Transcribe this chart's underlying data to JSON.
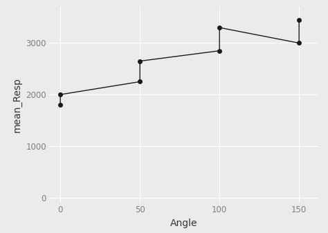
{
  "title": "",
  "xlabel": "Angle",
  "ylabel": "mean_Resp",
  "background_color": "#EBEBEB",
  "panel_color": "#EBEBEB",
  "grid_color": "#FFFFFF",
  "line_color": "#1a1a1a",
  "point_color": "#1a1a1a",
  "tick_color": "#7F7F7F",
  "x_values": [
    0,
    50,
    100,
    150
  ],
  "series1_y": [
    2000,
    2650,
    3300,
    3450
  ],
  "series2_y": [
    1800,
    2250,
    2850,
    3000
  ],
  "xticks": [
    0,
    50,
    100,
    150
  ],
  "yticks": [
    0,
    1000,
    2000,
    3000
  ],
  "xlim": [
    -7,
    162
  ],
  "ylim": [
    -100,
    3700
  ],
  "tick_label_fontsize": 8.5,
  "axis_label_fontsize": 10,
  "point_size": 16,
  "line_width": 1.0
}
